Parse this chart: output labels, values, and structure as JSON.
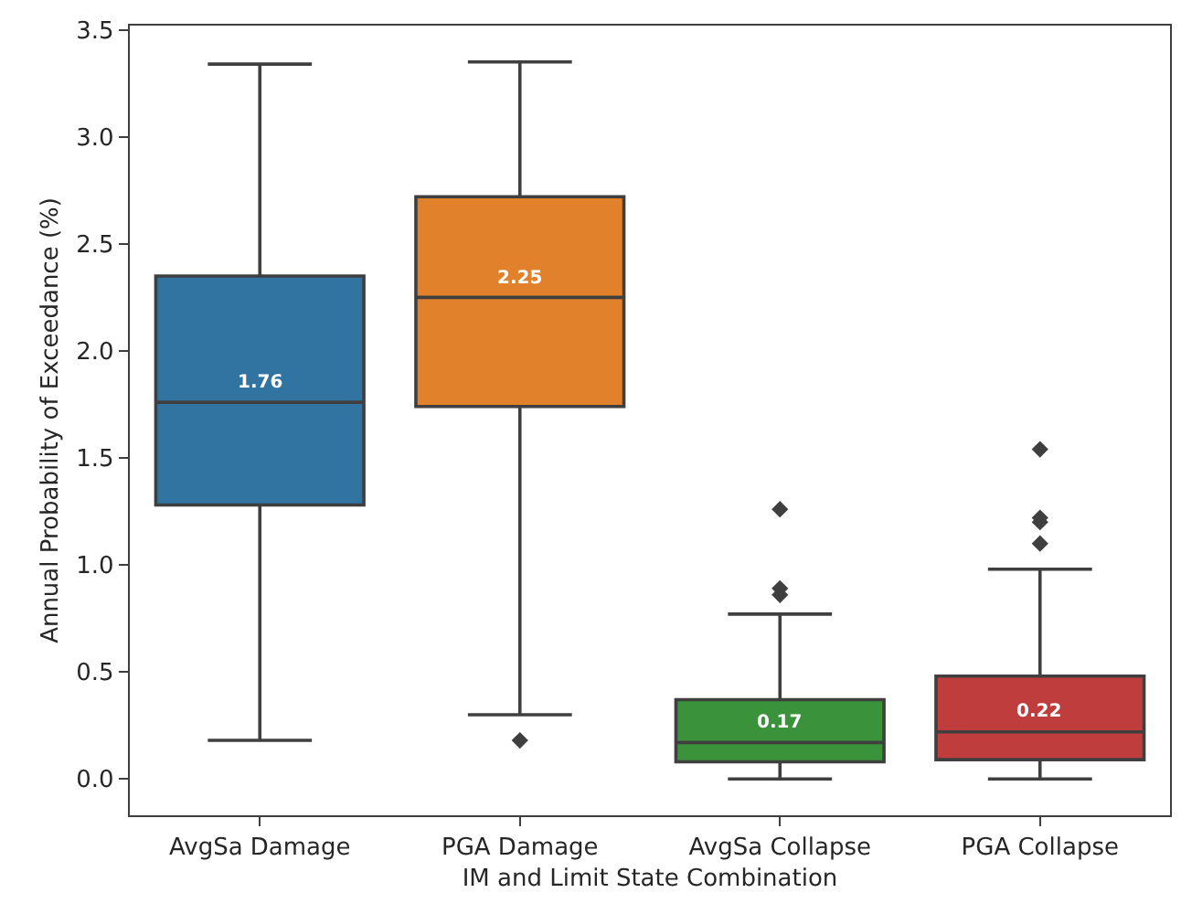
{
  "chart_data": {
    "type": "box",
    "xlabel": "IM and Limit State Combination",
    "ylabel": "Annual Probability of Exceedance (%)",
    "categories": [
      "AvgSa Damage",
      "PGA Damage",
      "AvgSa Collapse",
      "PGA Collapse"
    ],
    "colors": [
      "#3274a1",
      "#e1812c",
      "#3a923a",
      "#c03d3e"
    ],
    "boxes": [
      {
        "low": 0.18,
        "q1": 1.28,
        "median": 1.76,
        "q3": 2.35,
        "high": 3.34
      },
      {
        "low": 0.3,
        "q1": 1.74,
        "median": 2.25,
        "q3": 2.72,
        "high": 3.35,
        "outliers": [
          0.18
        ]
      },
      {
        "low": 0.0,
        "q1": 0.08,
        "median": 0.17,
        "q3": 0.37,
        "high": 0.77,
        "outliers": [
          0.86,
          0.89,
          1.26
        ]
      },
      {
        "low": 0.0,
        "q1": 0.09,
        "median": 0.22,
        "q3": 0.48,
        "high": 0.98,
        "outliers": [
          1.1,
          1.2,
          1.22,
          1.54
        ]
      }
    ],
    "value_labels": [
      "1.76",
      "2.25",
      "0.17",
      "0.22"
    ],
    "marker": "diamond",
    "ylim": [
      -0.17,
      3.52
    ],
    "yticks": [
      {
        "value": 0,
        "label": "0.0"
      },
      {
        "value": 0.5,
        "label": "0.5"
      },
      {
        "value": 1,
        "label": "1.0"
      },
      {
        "value": 1.5,
        "label": "1.5"
      },
      {
        "value": 2,
        "label": "2.0"
      },
      {
        "value": 2.5,
        "label": "2.5"
      },
      {
        "value": 3,
        "label": "3.0"
      },
      {
        "value": 3.5,
        "label": "3.5"
      }
    ]
  }
}
